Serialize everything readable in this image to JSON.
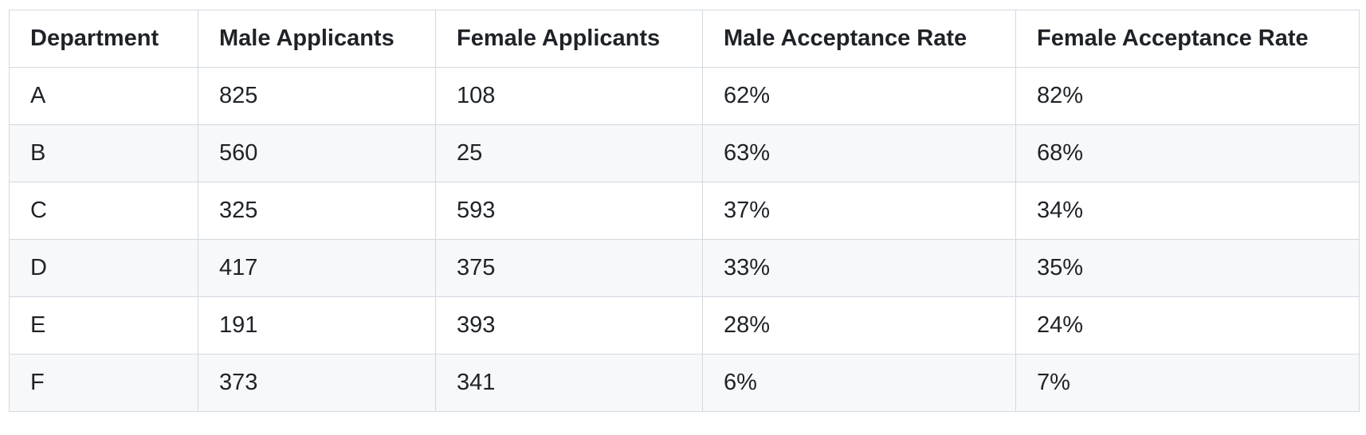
{
  "table": {
    "headers": [
      "Department",
      "Male Applicants",
      "Female Applicants",
      "Male Acceptance Rate",
      "Female Acceptance Rate"
    ],
    "rows": [
      [
        "A",
        "825",
        "108",
        "62%",
        "82%"
      ],
      [
        "B",
        "560",
        "25",
        "63%",
        "68%"
      ],
      [
        "C",
        "325",
        "593",
        "37%",
        "34%"
      ],
      [
        "D",
        "417",
        "375",
        "33%",
        "35%"
      ],
      [
        "E",
        "191",
        "393",
        "28%",
        "24%"
      ],
      [
        "F",
        "373",
        "341",
        "6%",
        "7%"
      ]
    ]
  },
  "colors": {
    "border": "#d1d9e0",
    "stripe": "#f6f8fa",
    "text": "#1f2328"
  }
}
